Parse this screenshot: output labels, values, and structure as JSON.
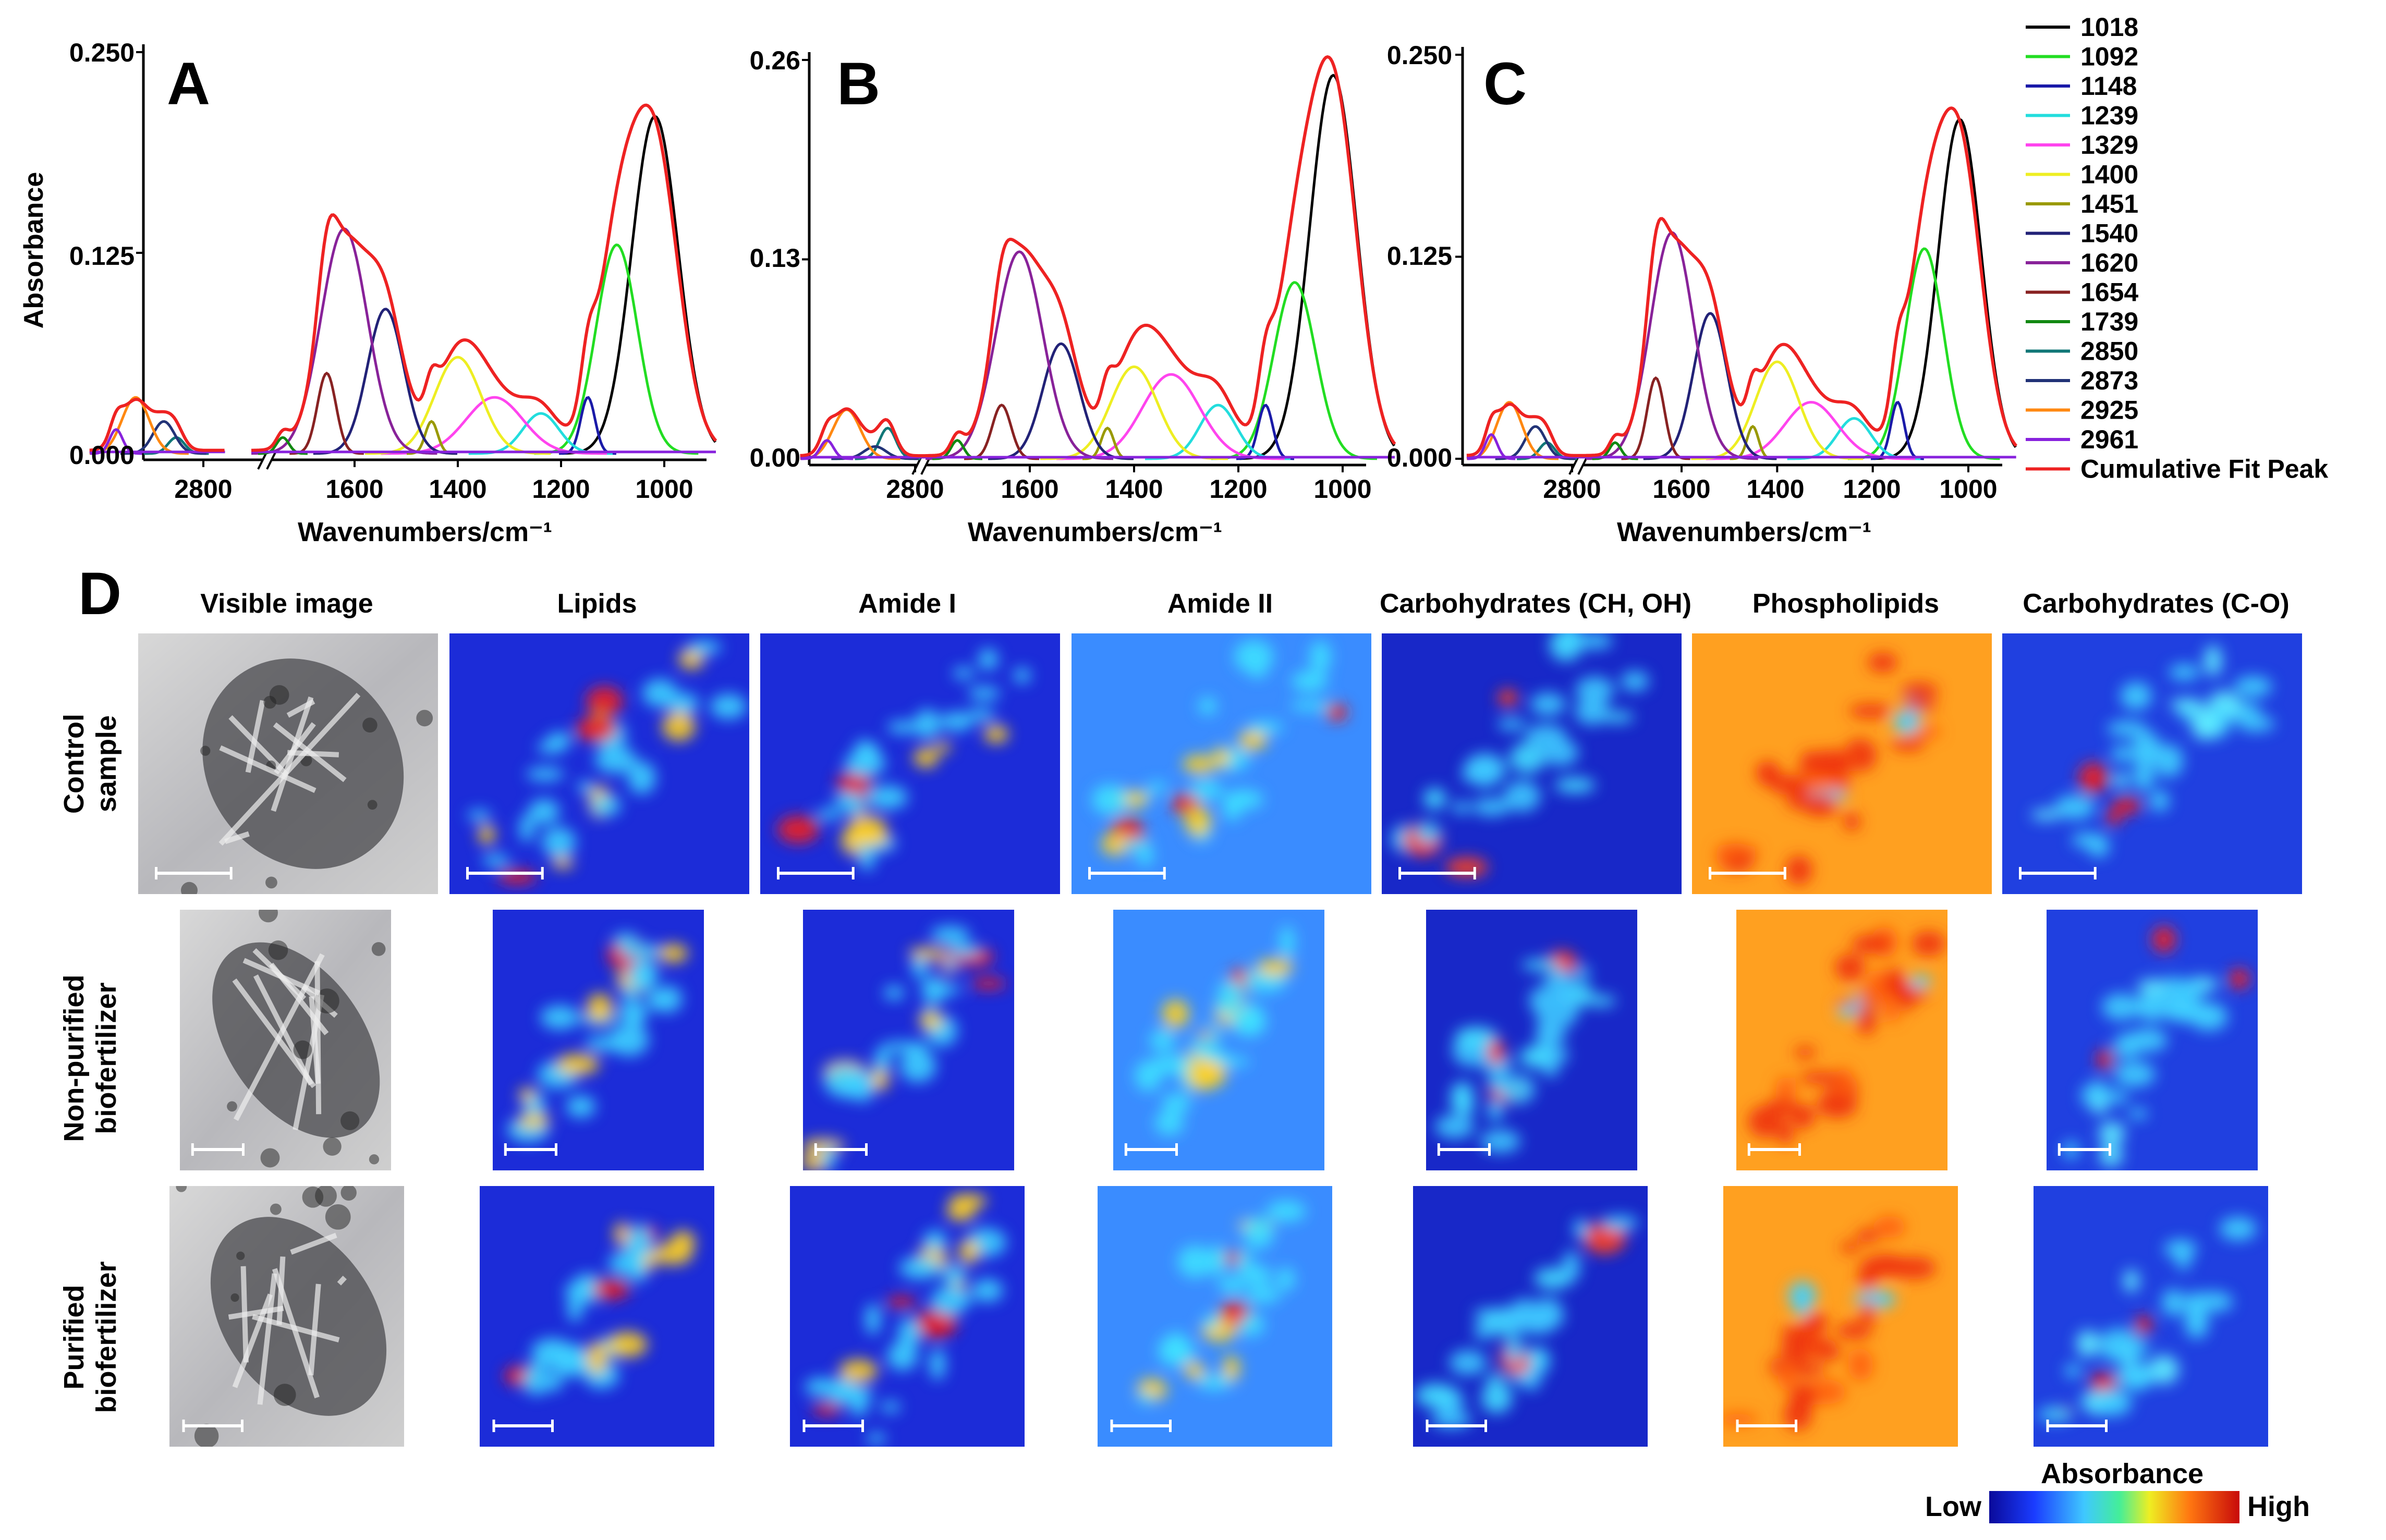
{
  "figure": {
    "panels": [
      {
        "letter": "A",
        "ylabel": "Absorbance",
        "xlabel": "Wavenumbers/cm⁻¹",
        "yticks": [
          "0.000",
          "0.125",
          "0.250"
        ],
        "xticks": [
          "2800",
          "1600",
          "1400",
          "1200",
          "1000"
        ]
      },
      {
        "letter": "B",
        "ylabel": "",
        "xlabel": "Wavenumbers/cm⁻¹",
        "yticks": [
          "0.00",
          "0.13",
          "0.26"
        ],
        "xticks": [
          "2800",
          "1600",
          "1400",
          "1200",
          "1000"
        ]
      },
      {
        "letter": "C",
        "ylabel": "",
        "xlabel": "Wavenumbers/cm⁻¹",
        "yticks": [
          "0.000",
          "0.125",
          "0.250"
        ],
        "xticks": [
          "2800",
          "1600",
          "1400",
          "1200",
          "1000"
        ]
      }
    ],
    "legend": [
      {
        "label": "1018",
        "color": "#000000"
      },
      {
        "label": "1092",
        "color": "#22dd22"
      },
      {
        "label": "1148",
        "color": "#1a1aa8"
      },
      {
        "label": "1239",
        "color": "#22dddd"
      },
      {
        "label": "1329",
        "color": "#ff44ee"
      },
      {
        "label": "1400",
        "color": "#eeee22"
      },
      {
        "label": "1451",
        "color": "#999900"
      },
      {
        "label": "1540",
        "color": "#222277"
      },
      {
        "label": "1620",
        "color": "#882299"
      },
      {
        "label": "1654",
        "color": "#882222"
      },
      {
        "label": "1739",
        "color": "#118811"
      },
      {
        "label": "2850",
        "color": "#117777"
      },
      {
        "label": "2873",
        "color": "#223377"
      },
      {
        "label": "2925",
        "color": "#ff8811"
      },
      {
        "label": "2961",
        "color": "#8822dd"
      },
      {
        "label": "Cumulative Fit Peak",
        "color": "#ee2222"
      }
    ],
    "panel_d": {
      "letter": "D",
      "columns": [
        "Visible image",
        "Lipids",
        "Amide I",
        "Amide II",
        "Carbohydrates (CH, OH)",
        "Phospholipids",
        "Carbohydrates (C-O)"
      ],
      "rows": [
        {
          "line1": "Control",
          "line2": "sample"
        },
        {
          "line1": "Non-purified",
          "line2": "biofertilizer"
        },
        {
          "line1": "Purified",
          "line2": "biofertilizer"
        }
      ],
      "colorbar": {
        "title": "Absorbance",
        "low": "Low",
        "high": "High"
      }
    }
  },
  "chart_data": [
    {
      "type": "line",
      "title": "A",
      "xlabel": "Wavenumbers/cm-1",
      "ylabel": "Absorbance",
      "ylim": [
        0,
        0.25
      ],
      "x_axis": "reversed with break between 2800 and 1800",
      "peaks": [
        {
          "center": 1018,
          "height": 0.21
        },
        {
          "center": 1092,
          "height": 0.13
        },
        {
          "center": 1148,
          "height": 0.035
        },
        {
          "center": 1239,
          "height": 0.025
        },
        {
          "center": 1329,
          "height": 0.035
        },
        {
          "center": 1400,
          "height": 0.06
        },
        {
          "center": 1451,
          "height": 0.02
        },
        {
          "center": 1540,
          "height": 0.09
        },
        {
          "center": 1620,
          "height": 0.14
        },
        {
          "center": 1654,
          "height": 0.05
        },
        {
          "center": 1739,
          "height": 0.01
        },
        {
          "center": 2850,
          "height": 0.01
        },
        {
          "center": 2873,
          "height": 0.02
        },
        {
          "center": 2925,
          "height": 0.035
        },
        {
          "center": 2961,
          "height": 0.015
        }
      ],
      "cumulative_max": 0.215
    },
    {
      "type": "line",
      "title": "B",
      "xlabel": "Wavenumbers/cm-1",
      "ylabel": "",
      "ylim": [
        0,
        0.26
      ],
      "x_axis": "reversed with break between 2800 and 1800",
      "peaks": [
        {
          "center": 1018,
          "height": 0.25
        },
        {
          "center": 1092,
          "height": 0.115
        },
        {
          "center": 1148,
          "height": 0.035
        },
        {
          "center": 1239,
          "height": 0.035
        },
        {
          "center": 1329,
          "height": 0.055
        },
        {
          "center": 1400,
          "height": 0.06
        },
        {
          "center": 1451,
          "height": 0.02
        },
        {
          "center": 1540,
          "height": 0.075
        },
        {
          "center": 1620,
          "height": 0.135
        },
        {
          "center": 1654,
          "height": 0.035
        },
        {
          "center": 1739,
          "height": 0.012
        },
        {
          "center": 2850,
          "height": 0.02
        },
        {
          "center": 2873,
          "height": 0.008
        },
        {
          "center": 2925,
          "height": 0.032
        },
        {
          "center": 2961,
          "height": 0.012
        }
      ],
      "cumulative_max": 0.26
    },
    {
      "type": "line",
      "title": "C",
      "xlabel": "Wavenumbers/cm-1",
      "ylabel": "",
      "ylim": [
        0,
        0.25
      ],
      "x_axis": "reversed with break between 2800 and 1800",
      "peaks": [
        {
          "center": 1018,
          "height": 0.21
        },
        {
          "center": 1092,
          "height": 0.13
        },
        {
          "center": 1148,
          "height": 0.035
        },
        {
          "center": 1239,
          "height": 0.025
        },
        {
          "center": 1329,
          "height": 0.035
        },
        {
          "center": 1400,
          "height": 0.06
        },
        {
          "center": 1451,
          "height": 0.02
        },
        {
          "center": 1540,
          "height": 0.09
        },
        {
          "center": 1620,
          "height": 0.14
        },
        {
          "center": 1654,
          "height": 0.05
        },
        {
          "center": 1739,
          "height": 0.01
        },
        {
          "center": 2850,
          "height": 0.01
        },
        {
          "center": 2873,
          "height": 0.02
        },
        {
          "center": 2925,
          "height": 0.035
        },
        {
          "center": 2961,
          "height": 0.015
        }
      ],
      "cumulative_max": 0.215
    }
  ]
}
